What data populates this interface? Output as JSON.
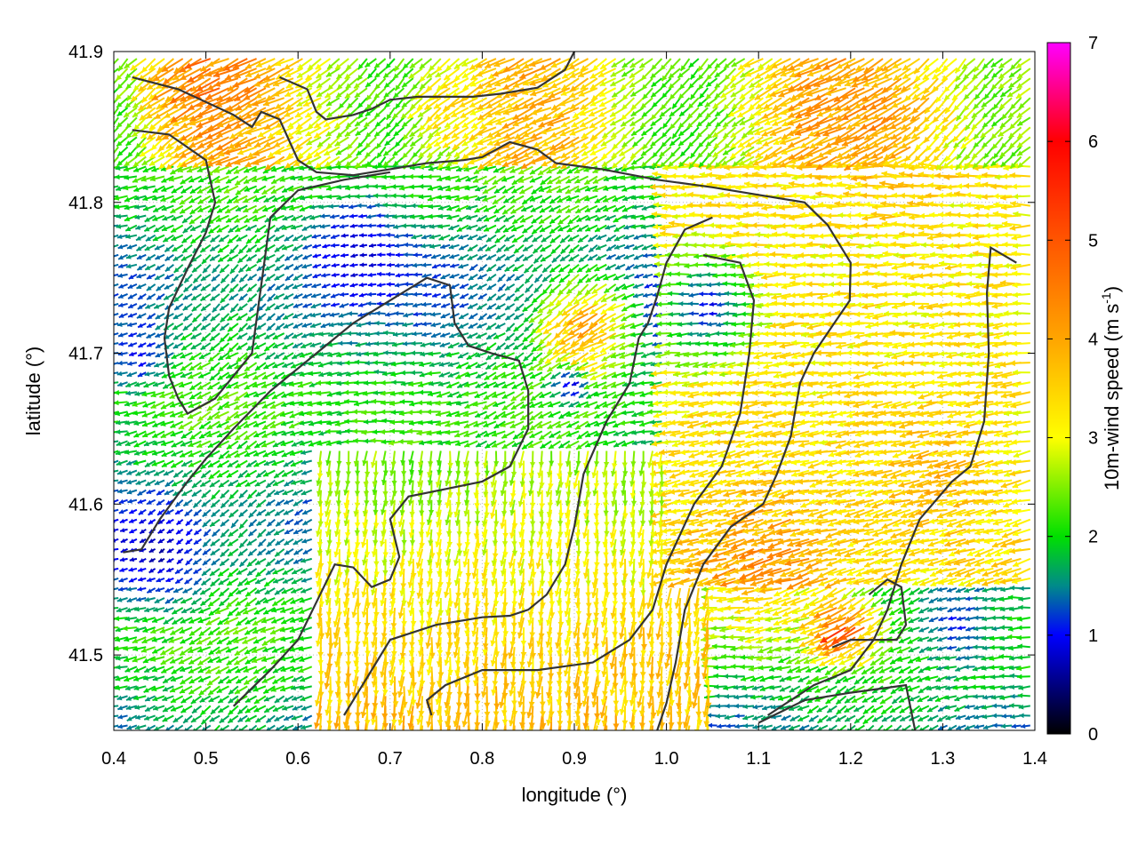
{
  "chart_data": {
    "type": "vector_field",
    "xlabel": "longitude (°)",
    "ylabel": "latitude (°)",
    "colorbar": {
      "label_main": "10m-wind speed (m s",
      "label_exp": "-1",
      "label_close": ")",
      "range": [
        0,
        7
      ],
      "ticks": [
        "0",
        "1",
        "2",
        "3",
        "4",
        "5",
        "6",
        "7"
      ],
      "stops": [
        {
          "v": 0,
          "color": "#000000"
        },
        {
          "v": 1,
          "color": "#0000ff"
        },
        {
          "v": 1.5,
          "color": "#008a8a"
        },
        {
          "v": 2,
          "color": "#00e000"
        },
        {
          "v": 3,
          "color": "#ffff00"
        },
        {
          "v": 4,
          "color": "#ffa500"
        },
        {
          "v": 5,
          "color": "#ff5500"
        },
        {
          "v": 6,
          "color": "#ff0000"
        },
        {
          "v": 7,
          "color": "#ff00ff"
        }
      ]
    },
    "xlim": [
      0.4,
      1.4
    ],
    "ylim": [
      41.45,
      41.9
    ],
    "xticks": [
      "0.4",
      "0.5",
      "0.6",
      "0.7",
      "0.8",
      "0.9",
      "1.0",
      "1.1",
      "1.2",
      "1.3",
      "1.4"
    ],
    "yticks": [
      "41.5",
      "41.6",
      "41.7",
      "41.8",
      "41.9"
    ],
    "grid": true,
    "contours": [
      [
        [
          0.42,
          41.883
        ],
        [
          0.47,
          41.875
        ],
        [
          0.53,
          41.858
        ],
        [
          0.55,
          41.85
        ],
        [
          0.56,
          41.86
        ],
        [
          0.58,
          41.855
        ],
        [
          0.6,
          41.828
        ],
        [
          0.62,
          41.82
        ],
        [
          0.66,
          41.818
        ],
        [
          0.7,
          41.822
        ],
        [
          0.74,
          41.826
        ],
        [
          0.78,
          41.828
        ],
        [
          0.8,
          41.83
        ],
        [
          0.83,
          41.84
        ],
        [
          0.86,
          41.835
        ],
        [
          0.88,
          41.826
        ],
        [
          0.93,
          41.822
        ],
        [
          0.99,
          41.815
        ],
        [
          1.05,
          41.81
        ],
        [
          1.1,
          41.805
        ],
        [
          1.15,
          41.8
        ],
        [
          1.175,
          41.785
        ],
        [
          1.19,
          41.77
        ],
        [
          1.2,
          41.76
        ],
        [
          1.199,
          41.735
        ],
        [
          1.18,
          41.718
        ],
        [
          1.16,
          41.7
        ],
        [
          1.145,
          41.68
        ],
        [
          1.135,
          41.645
        ],
        [
          1.12,
          41.62
        ],
        [
          1.105,
          41.6
        ],
        [
          1.07,
          41.585
        ],
        [
          1.04,
          41.56
        ],
        [
          1.02,
          41.53
        ],
        [
          1.01,
          41.495
        ],
        [
          1.0,
          41.468
        ],
        [
          0.99,
          41.45
        ]
      ],
      [
        [
          0.42,
          41.848
        ],
        [
          0.46,
          41.845
        ],
        [
          0.5,
          41.828
        ],
        [
          0.51,
          41.8
        ],
        [
          0.5,
          41.78
        ],
        [
          0.48,
          41.756
        ],
        [
          0.46,
          41.73
        ],
        [
          0.455,
          41.71
        ],
        [
          0.46,
          41.685
        ],
        [
          0.47,
          41.67
        ],
        [
          0.48,
          41.66
        ],
        [
          0.51,
          41.67
        ],
        [
          0.53,
          41.685
        ],
        [
          0.55,
          41.7
        ],
        [
          0.56,
          41.745
        ],
        [
          0.57,
          41.79
        ],
        [
          0.6,
          41.808
        ],
        [
          0.65,
          41.815
        ],
        [
          0.7,
          41.82
        ]
      ],
      [
        [
          0.41,
          41.568
        ],
        [
          0.43,
          41.57
        ],
        [
          0.45,
          41.59
        ],
        [
          0.48,
          41.615
        ],
        [
          0.5,
          41.63
        ],
        [
          0.53,
          41.65
        ],
        [
          0.57,
          41.675
        ],
        [
          0.62,
          41.7
        ],
        [
          0.66,
          41.72
        ],
        [
          0.7,
          41.735
        ],
        [
          0.74,
          41.75
        ],
        [
          0.765,
          41.745
        ],
        [
          0.77,
          41.72
        ],
        [
          0.785,
          41.705
        ],
        [
          0.81,
          41.7
        ],
        [
          0.84,
          41.695
        ],
        [
          0.85,
          41.675
        ],
        [
          0.85,
          41.65
        ],
        [
          0.83,
          41.625
        ],
        [
          0.8,
          41.615
        ],
        [
          0.76,
          41.61
        ],
        [
          0.72,
          41.605
        ],
        [
          0.7,
          41.59
        ],
        [
          0.71,
          41.565
        ],
        [
          0.7,
          41.55
        ],
        [
          0.68,
          41.545
        ],
        [
          0.66,
          41.558
        ],
        [
          0.64,
          41.56
        ],
        [
          0.62,
          41.535
        ],
        [
          0.6,
          41.51
        ],
        [
          0.57,
          41.49
        ],
        [
          0.53,
          41.466
        ]
      ],
      [
        [
          0.65,
          41.46
        ],
        [
          0.67,
          41.48
        ],
        [
          0.7,
          41.51
        ],
        [
          0.75,
          41.52
        ],
        [
          0.8,
          41.525
        ],
        [
          0.83,
          41.526
        ],
        [
          0.85,
          41.53
        ],
        [
          0.87,
          41.54
        ],
        [
          0.89,
          41.56
        ],
        [
          0.9,
          41.585
        ],
        [
          0.91,
          41.62
        ],
        [
          0.935,
          41.655
        ],
        [
          0.96,
          41.68
        ],
        [
          0.97,
          41.71
        ],
        [
          0.98,
          41.72
        ],
        [
          0.99,
          41.738
        ],
        [
          1.0,
          41.76
        ],
        [
          1.02,
          41.782
        ],
        [
          1.05,
          41.79
        ]
      ],
      [
        [
          0.745,
          41.46
        ],
        [
          0.74,
          41.47
        ],
        [
          0.76,
          41.48
        ],
        [
          0.8,
          41.49
        ],
        [
          0.86,
          41.49
        ],
        [
          0.92,
          41.495
        ],
        [
          0.96,
          41.51
        ],
        [
          0.985,
          41.53
        ],
        [
          1.0,
          41.56
        ],
        [
          1.03,
          41.6
        ],
        [
          1.06,
          41.625
        ],
        [
          1.08,
          41.66
        ],
        [
          1.09,
          41.7
        ],
        [
          1.095,
          41.735
        ],
        [
          1.08,
          41.76
        ],
        [
          1.04,
          41.765
        ]
      ],
      [
        [
          1.11,
          41.46
        ],
        [
          1.16,
          41.48
        ],
        [
          1.2,
          41.49
        ],
        [
          1.225,
          41.51
        ],
        [
          1.24,
          41.53
        ],
        [
          1.255,
          41.56
        ],
        [
          1.275,
          41.59
        ],
        [
          1.31,
          41.615
        ],
        [
          1.33,
          41.625
        ],
        [
          1.345,
          41.655
        ],
        [
          1.35,
          41.7
        ],
        [
          1.348,
          41.74
        ],
        [
          1.352,
          41.77
        ],
        [
          1.38,
          41.76
        ]
      ],
      [
        [
          1.18,
          41.505
        ],
        [
          1.2,
          41.51
        ],
        [
          1.25,
          41.51
        ],
        [
          1.26,
          41.52
        ],
        [
          1.255,
          41.545
        ],
        [
          1.24,
          41.55
        ],
        [
          1.22,
          41.54
        ]
      ],
      [
        [
          1.1,
          41.455
        ],
        [
          1.15,
          41.47
        ],
        [
          1.2,
          41.475
        ],
        [
          1.26,
          41.48
        ],
        [
          1.27,
          41.45
        ]
      ],
      [
        [
          0.58,
          41.883
        ],
        [
          0.61,
          41.875
        ],
        [
          0.62,
          41.86
        ],
        [
          0.63,
          41.855
        ],
        [
          0.66,
          41.858
        ],
        [
          0.68,
          41.862
        ],
        [
          0.7,
          41.868
        ],
        [
          0.73,
          41.87
        ],
        [
          0.76,
          41.87
        ],
        [
          0.79,
          41.87
        ],
        [
          0.82,
          41.872
        ],
        [
          0.86,
          41.876
        ],
        [
          0.89,
          41.888
        ],
        [
          0.9,
          41.9
        ]
      ]
    ],
    "jets": [
      {
        "x": 0.92,
        "y": 41.72,
        "r": 0.07,
        "s": 4.6
      },
      {
        "x": 0.72,
        "y": 41.63,
        "r": 0.09,
        "s": 2.4
      },
      {
        "x": 1.11,
        "y": 41.56,
        "r": 0.11,
        "s": 4.4
      },
      {
        "x": 1.2,
        "y": 41.52,
        "r": 0.05,
        "s": 5.5
      },
      {
        "x": 0.5,
        "y": 41.88,
        "r": 0.09,
        "s": 4.8
      },
      {
        "x": 1.25,
        "y": 41.86,
        "r": 0.12,
        "s": 4.3
      },
      {
        "x": 1.0,
        "y": 41.5,
        "r": 0.08,
        "s": 3.6
      },
      {
        "x": 1.3,
        "y": 41.62,
        "r": 0.08,
        "s": 3.8
      },
      {
        "x": 0.77,
        "y": 41.87,
        "r": 0.06,
        "s": 3.5
      }
    ],
    "calms": [
      {
        "x": 0.45,
        "y": 41.57,
        "r": 0.08,
        "s": 0.6
      },
      {
        "x": 0.67,
        "y": 41.77,
        "r": 0.07,
        "s": 0.7
      },
      {
        "x": 1.05,
        "y": 41.73,
        "r": 0.08,
        "s": 0.8
      },
      {
        "x": 0.43,
        "y": 41.7,
        "r": 0.05,
        "s": 0.9
      },
      {
        "x": 1.32,
        "y": 41.52,
        "r": 0.06,
        "s": 1.0
      },
      {
        "x": 0.9,
        "y": 41.68,
        "r": 0.03,
        "s": 0.6
      }
    ]
  }
}
